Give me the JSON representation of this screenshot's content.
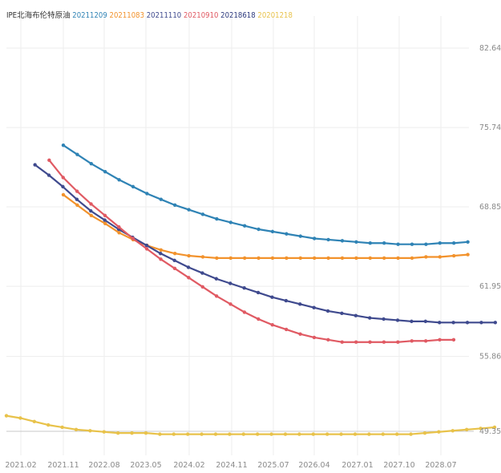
{
  "chart_data": {
    "type": "line",
    "title": "",
    "legend_placement": "top-left",
    "legend_prefix": "IPE北海布伦特原油",
    "grid": true,
    "xlabel": "",
    "ylabel": "",
    "x_ticks": [
      "2021.02",
      "2021.11",
      "2022.08",
      "2023.05",
      "2024.02",
      "2024.11",
      "2025.07",
      "2026.04",
      "2027.01",
      "2027.10",
      "2028.07"
    ],
    "y_ticks": [
      "49.35",
      "55.86",
      "61.95",
      "68.85",
      "75.74",
      "82.64"
    ],
    "ylim": [
      49.35,
      82.64
    ],
    "series": [
      {
        "name": "20211209",
        "color": "#2f83b5",
        "x_start": "2021.11",
        "values": [
          74.2,
          73.4,
          72.6,
          71.9,
          71.2,
          70.6,
          70.0,
          69.5,
          69.0,
          68.6,
          68.2,
          67.8,
          67.5,
          67.2,
          66.9,
          66.7,
          66.5,
          66.3,
          66.1,
          66.0,
          65.9,
          65.8,
          65.7,
          65.7,
          65.6,
          65.6,
          65.6,
          65.7,
          65.7,
          65.8
        ]
      },
      {
        "name": "20211083",
        "color": "#f2922c",
        "x_start": "2021.11",
        "values": [
          69.9,
          69.0,
          68.1,
          67.4,
          66.6,
          66.0,
          65.5,
          65.1,
          64.8,
          64.6,
          64.5,
          64.4,
          64.4,
          64.4,
          64.4,
          64.4,
          64.4,
          64.4,
          64.4,
          64.4,
          64.4,
          64.4,
          64.4,
          64.4,
          64.4,
          64.4,
          64.5,
          64.5,
          64.6,
          64.7
        ]
      },
      {
        "name": "20211110",
        "color": "#3f4a8e",
        "x_start": "2021.05",
        "values": [
          72.5,
          71.6,
          70.6,
          69.5,
          68.5,
          67.7,
          66.9,
          66.2,
          65.5,
          64.8,
          64.2,
          63.6,
          63.1,
          62.6,
          62.2,
          61.8,
          61.4,
          61.0,
          60.7,
          60.4,
          60.1,
          59.8,
          59.6,
          59.4,
          59.2,
          59.1,
          59.0,
          58.9,
          58.9,
          58.8,
          58.8,
          58.8,
          58.8,
          58.8
        ]
      },
      {
        "name": "20210910",
        "color": "#e05a63",
        "x_start": "2021.08",
        "values": [
          72.9,
          71.4,
          70.2,
          69.1,
          68.1,
          67.1,
          66.1,
          65.2,
          64.3,
          63.5,
          62.7,
          61.9,
          61.1,
          60.4,
          59.7,
          59.1,
          58.6,
          58.2,
          57.8,
          57.5,
          57.3,
          57.1,
          57.1,
          57.1,
          57.1,
          57.1,
          57.2,
          57.2,
          57.3,
          57.3
        ]
      },
      {
        "name": "20218618",
        "color": "#2d3a7e",
        "x_start": "2021.11",
        "values": [
          null
        ]
      },
      {
        "name": "20201218",
        "color": "#e8c24a",
        "x_start": "2020.11",
        "values": [
          50.7,
          50.5,
          50.2,
          49.9,
          49.7,
          49.5,
          49.4,
          49.3,
          49.2,
          49.2,
          49.2,
          49.1,
          49.1,
          49.1,
          49.1,
          49.1,
          49.1,
          49.1,
          49.1,
          49.1,
          49.1,
          49.1,
          49.1,
          49.1,
          49.1,
          49.1,
          49.1,
          49.1,
          49.1,
          49.1,
          49.2,
          49.3,
          49.4,
          49.5,
          49.6,
          49.7
        ]
      }
    ]
  }
}
